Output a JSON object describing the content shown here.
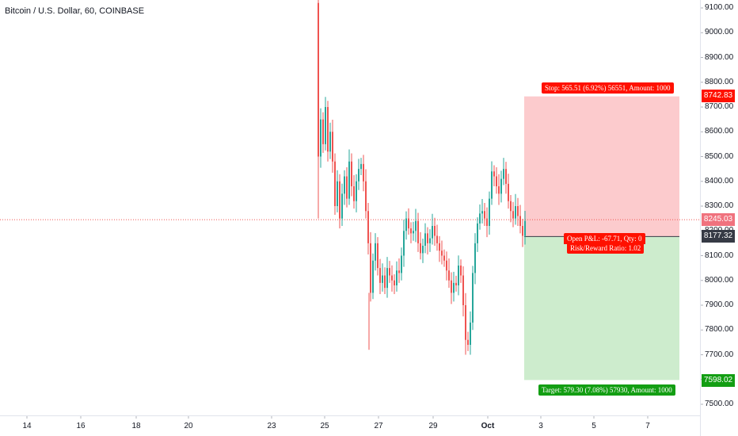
{
  "header": {
    "title": "Bitcoin / U.S. Dollar, 60, COINBASE"
  },
  "y_axis": {
    "ticks": [
      "9100.00",
      "9000.00",
      "8900.00",
      "8800.00",
      "8700.00",
      "8600.00",
      "8500.00",
      "8400.00",
      "8300.00",
      "8200.00",
      "8100.00",
      "8000.00",
      "7900.00",
      "7800.00",
      "7700.00",
      "7600.00",
      "7500.00"
    ]
  },
  "x_axis": {
    "ticks": [
      "14",
      "16",
      "18",
      "20",
      "23",
      "25",
      "27",
      "29",
      "Oct",
      "3",
      "5",
      "7"
    ]
  },
  "price_tags": {
    "stop": "8742.83",
    "current": "8245.03",
    "entry": "8177.32",
    "target": "7598.02"
  },
  "position_tool": {
    "stop_label": "Stop: 565.51 (6.92%) 56551, Amount: 1000",
    "pnl_label": "Open P&L: -67.71, Qty: 0",
    "rr_label": "Risk/Reward Ratio: 1.02",
    "target_label": "Target: 579.30 (7.08%) 57930, Amount: 1000"
  },
  "colors": {
    "up": "#26a69a",
    "down": "#ef5350",
    "stop_zone": "#fccbcd",
    "target_zone": "#cdeccd",
    "stop_tag": "#ff1100",
    "target_tag": "#139e13",
    "entry_tag": "#363a45",
    "current_tag": "#f0727e"
  },
  "chart_data": {
    "type": "candlestick",
    "ylim": [
      7450,
      9150
    ],
    "visible_price_levels": {
      "stop": 8742.83,
      "entry": 8177.32,
      "target": 7598.02,
      "last": 8245.03
    },
    "series": []
  }
}
